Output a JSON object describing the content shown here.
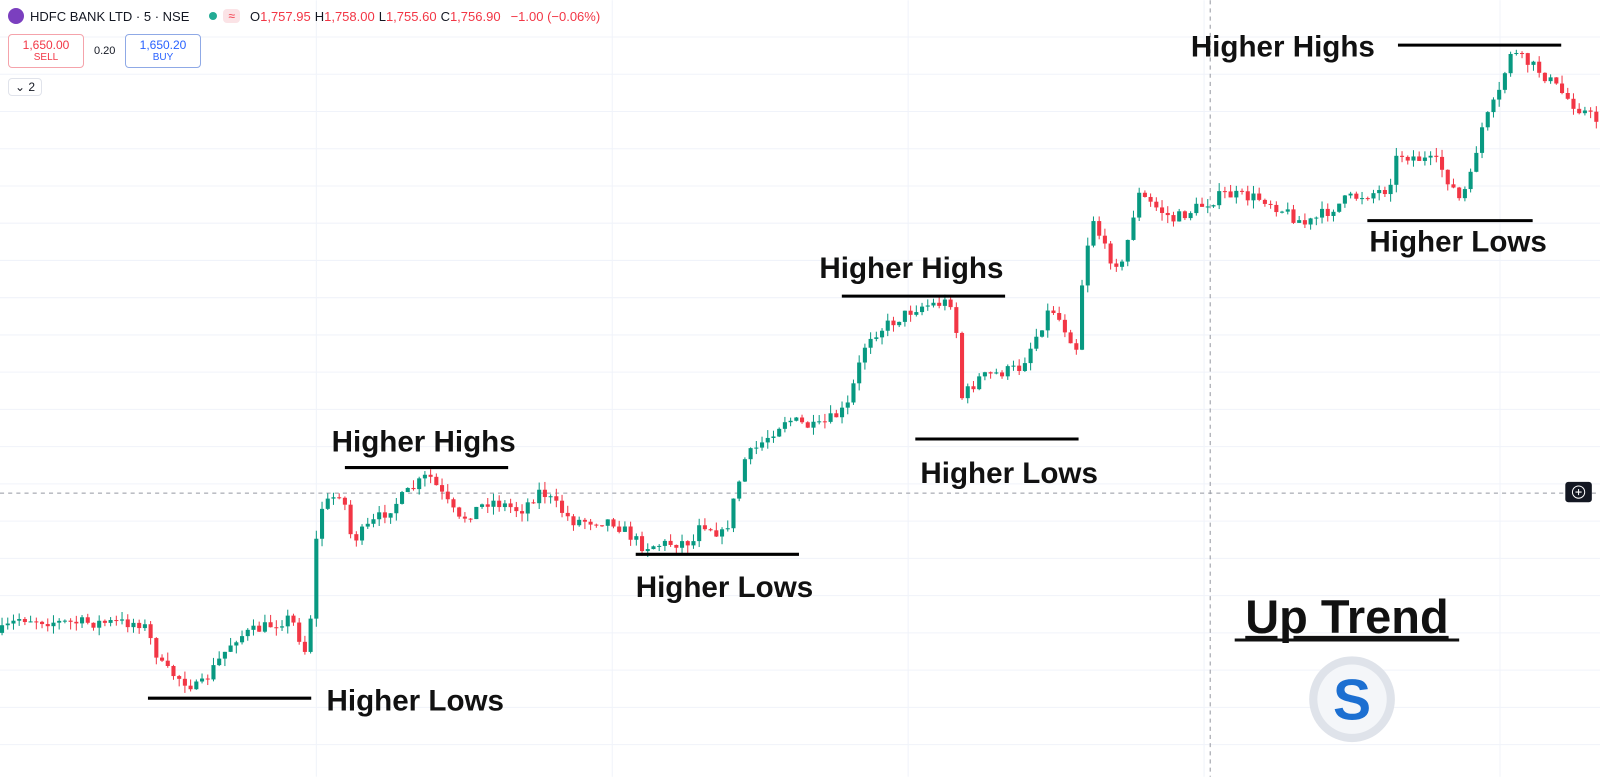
{
  "header": {
    "symbol": "HDFC BANK LTD · 5 · NSE",
    "ohlc": [
      {
        "label": "O",
        "value": "1,757.95"
      },
      {
        "label": "H",
        "value": "1,758.00"
      },
      {
        "label": "L",
        "value": "1,755.60"
      },
      {
        "label": "C",
        "value": "1,756.90"
      }
    ],
    "change": "−1.00 (−0.06%)"
  },
  "trade": {
    "sell_price": "1,650.00",
    "sell_label": "SELL",
    "spread": "0.20",
    "buy_price": "1,650.20",
    "buy_label": "BUY"
  },
  "indicators_count": "2",
  "annotations": [
    "Higher Lows",
    "Higher Highs",
    "Higher Lows",
    "Higher Highs",
    "Higher Lows",
    "Higher Highs",
    "Higher Lows"
  ],
  "title": "Up Trend"
}
